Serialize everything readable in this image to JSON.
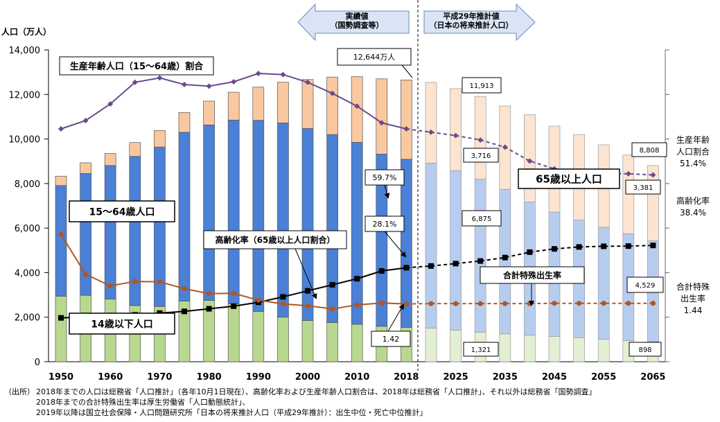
{
  "chart_data": {
    "type": "bar+line",
    "ylabel": "人口（万人）",
    "ylim": [
      0,
      14000
    ],
    "yticks": [
      "0",
      "2,000",
      "4,000",
      "6,000",
      "8,000",
      "10,000",
      "12,000",
      "14,000"
    ],
    "x": [
      1950,
      1955,
      1960,
      1965,
      1970,
      1975,
      1980,
      1985,
      1990,
      1995,
      2000,
      2005,
      2010,
      2015,
      2018,
      2020,
      2025,
      2030,
      2035,
      2040,
      2045,
      2050,
      2055,
      2060,
      2065
    ],
    "xlabels": [
      "1950",
      "1960",
      "1970",
      "1980",
      "1990",
      "2000",
      "2010",
      "2018",
      "2025",
      "2035",
      "2045",
      "2055",
      "2065"
    ],
    "projection_start_index": 15,
    "series": [
      {
        "name": "14歳以下人口",
        "values": [
          2940,
          2980,
          2810,
          2520,
          2480,
          2720,
          2750,
          2600,
          2250,
          2000,
          1850,
          1760,
          1680,
          1590,
          1540,
          1510,
          1410,
          1320,
          1250,
          1190,
          1140,
          1080,
          1010,
          950,
          898
        ]
      },
      {
        "name": "15～64歳人口",
        "values": [
          4970,
          5470,
          6000,
          6700,
          7160,
          7580,
          7880,
          8250,
          8590,
          8720,
          8620,
          8440,
          8170,
          7730,
          7550,
          7410,
          7170,
          6875,
          6490,
          5980,
          5580,
          5280,
          5030,
          4790,
          4529
        ]
      },
      {
        "name": "65歳以上人口",
        "values": [
          420,
          480,
          540,
          620,
          740,
          890,
          1070,
          1250,
          1490,
          1830,
          2200,
          2580,
          2950,
          3380,
          3560,
          3620,
          3680,
          3716,
          3740,
          3920,
          3860,
          3840,
          3700,
          3540,
          3381
        ]
      },
      {
        "name": "生産年齢人口（15～64歳）割合",
        "unit": "%",
        "values": [
          59.7,
          61.2,
          64.2,
          68.1,
          68.9,
          67.7,
          67.4,
          68.2,
          69.7,
          69.5,
          68.1,
          66.1,
          63.8,
          60.8,
          59.7,
          59.1,
          58.5,
          57.7,
          56.4,
          53.9,
          52.5,
          51.8,
          51.6,
          51.6,
          51.4
        ]
      },
      {
        "name": "高齢化率（65歳以上人口割合）",
        "unit": "%",
        "values": [
          4.9,
          5.3,
          5.7,
          6.3,
          7.1,
          7.9,
          9.1,
          10.3,
          12.1,
          14.6,
          17.4,
          20.2,
          23.0,
          26.6,
          28.1,
          28.9,
          30.0,
          31.2,
          32.8,
          35.3,
          36.8,
          37.7,
          38.0,
          38.1,
          38.4
        ]
      },
      {
        "name": "合計特殊出生率",
        "values": [
          3.65,
          2.37,
          2.0,
          2.14,
          2.13,
          1.91,
          1.75,
          1.76,
          1.54,
          1.42,
          1.36,
          1.26,
          1.39,
          1.45,
          1.42,
          1.43,
          1.43,
          1.43,
          1.43,
          1.43,
          1.44,
          1.44,
          1.44,
          1.44,
          1.44
        ]
      }
    ],
    "labels": {
      "jisseki": "実績値\n（国勢調査等）",
      "suikei": "平成29年推計値\n（日本の将来推計人口）",
      "total_2018": "12,644万人",
      "total_2030": "11,913",
      "total_2065": "8,808",
      "seisan_ratio_2018": "59.7%",
      "koreika_2018": "28.1%",
      "tfr_2018": "1.42",
      "old_2030": "3,716",
      "working_2030": "6,875",
      "child_2030": "1,321",
      "old_2065": "3,381",
      "working_2065": "4,529",
      "child_2065": "898",
      "box_seisan": "生産年齢人口（15～64歳）割合",
      "box_working": "15～64歳人口",
      "box_koreika": "高齢化率（65歳以上人口割合）",
      "box_old": "65歳以上人口",
      "box_tfr": "合計特殊出生率",
      "box_child": "14歳以下人口",
      "right_seisan": "生産年齢\n人口割合\n51.4%",
      "right_koreika": "高齢化率\n38.4%",
      "right_tfr": "合計特殊\n出生率\n1.44"
    }
  },
  "source": {
    "label": "（出所）",
    "lines": [
      "2018年までの人口は総務省「人口推計」（各年10月1日現在）、高齢化率および生産年齢人口割合は、2018年は総務省「人口推計」、それ以外は総務省「国勢調査」",
      "2018年までの合計特殊出生率は厚生労働省「人口動態統計」、",
      "2019年以降は国立社会保障・人口問題研究所「日本の将来推計人口（平成29年推計）：出生中位・死亡中位推計」"
    ]
  },
  "colors": {
    "child": "#B8D88F",
    "working": "#4A80D6",
    "old": "#F9C89F",
    "child_proj": "#E3EFD2",
    "working_proj": "#B7CDEF",
    "old_proj": "#FCE4D1",
    "seisan_line": "#6A4A8C",
    "koreika_line": "#000000",
    "tfr_line": "#B5551C"
  }
}
